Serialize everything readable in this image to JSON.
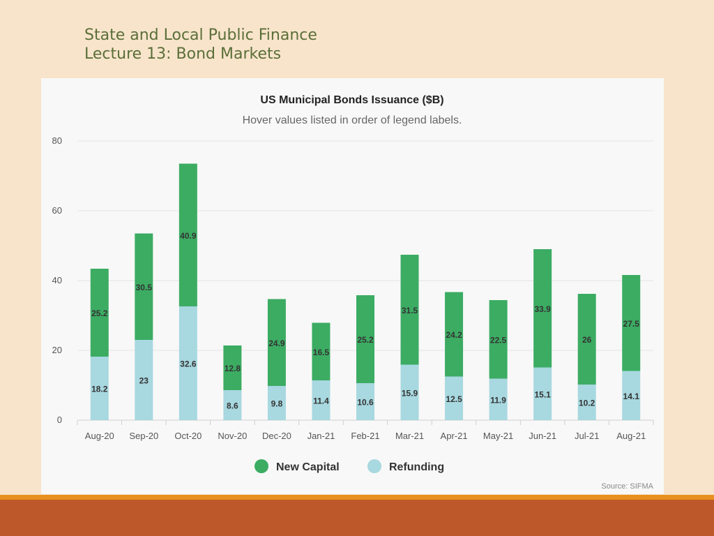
{
  "slide": {
    "title_line1": "State and Local Public Finance",
    "title_line2": "Lecture 13: Bond Markets"
  },
  "colors": {
    "new_capital": "#3cac63",
    "refunding": "#a8d8e0"
  },
  "chart_data": {
    "type": "bar",
    "stacked": true,
    "title": "US Municipal Bonds Issuance ($B)",
    "subtitle": "Hover values listed in order of legend labels.",
    "categories": [
      "Aug-20",
      "Sep-20",
      "Oct-20",
      "Nov-20",
      "Dec-20",
      "Jan-21",
      "Feb-21",
      "Mar-21",
      "Apr-21",
      "May-21",
      "Jun-21",
      "Jul-21",
      "Aug-21"
    ],
    "series": [
      {
        "name": "Refunding",
        "values": [
          18.2,
          23,
          32.6,
          8.6,
          9.8,
          11.4,
          10.6,
          15.9,
          12.5,
          11.9,
          15.1,
          10.2,
          14.1
        ]
      },
      {
        "name": "New Capital",
        "values": [
          25.2,
          30.5,
          40.9,
          12.8,
          24.9,
          16.5,
          25.2,
          31.5,
          24.2,
          22.5,
          33.9,
          26,
          27.5
        ]
      }
    ],
    "legend_order": [
      "New Capital",
      "Refunding"
    ],
    "ylim": [
      0,
      80
    ],
    "yticks": [
      0,
      20,
      40,
      60,
      80
    ],
    "grid": true,
    "legend_position": "bottom",
    "source": "Source: SIFMA"
  }
}
